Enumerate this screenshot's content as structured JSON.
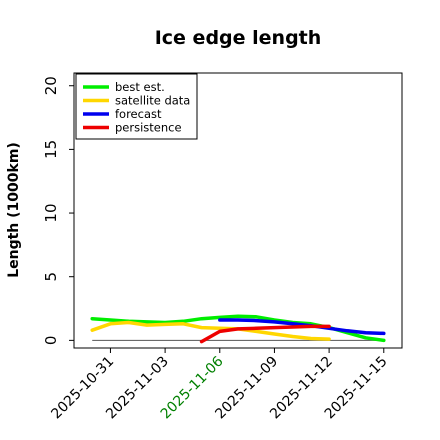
{
  "chart_data": {
    "type": "line",
    "title": "Ice edge length",
    "xlabel": "",
    "ylabel": "Length (1000km)",
    "ylim": [
      -0.6,
      21
    ],
    "yticks": [
      0,
      5,
      10,
      15,
      20
    ],
    "xlim": [
      "2025-10-29",
      "2025-11-16"
    ],
    "xticks": [
      {
        "date": "2025-10-31",
        "label": "2025-10-31",
        "color": "#000000"
      },
      {
        "date": "2025-11-03",
        "label": "2025-11-03",
        "color": "#000000"
      },
      {
        "date": "2025-11-06",
        "label": "2025-11-06",
        "color": "#008000"
      },
      {
        "date": "2025-11-09",
        "label": "2025-11-09",
        "color": "#000000"
      },
      {
        "date": "2025-11-12",
        "label": "2025-11-12",
        "color": "#000000"
      },
      {
        "date": "2025-11-15",
        "label": "2025-11-15",
        "color": "#000000"
      }
    ],
    "grid": false,
    "legend_position": "top-left",
    "reference_line": {
      "y": 0,
      "from": "2025-10-30",
      "to": "2025-11-15",
      "color": "#555555"
    },
    "series": [
      {
        "name": "best est.",
        "color": "#00ee00",
        "x": [
          "2025-10-30",
          "2025-10-31",
          "2025-11-01",
          "2025-11-02",
          "2025-11-03",
          "2025-11-04",
          "2025-11-05",
          "2025-11-06",
          "2025-11-07",
          "2025-11-08",
          "2025-11-09",
          "2025-11-10",
          "2025-11-11",
          "2025-11-12",
          "2025-11-13",
          "2025-11-14",
          "2025-11-15"
        ],
        "values": [
          1.7,
          1.6,
          1.5,
          1.45,
          1.4,
          1.5,
          1.7,
          1.8,
          1.9,
          1.85,
          1.6,
          1.4,
          1.3,
          1.0,
          0.6,
          0.2,
          0.0
        ]
      },
      {
        "name": "satellite data",
        "color": "#ffd700",
        "x": [
          "2025-10-30",
          "2025-10-31",
          "2025-11-01",
          "2025-11-02",
          "2025-11-03",
          "2025-11-04",
          "2025-11-05",
          "2025-11-06",
          "2025-11-07",
          "2025-11-08",
          "2025-11-09",
          "2025-11-10",
          "2025-11-11",
          "2025-11-12"
        ],
        "values": [
          0.8,
          1.3,
          1.4,
          1.2,
          1.25,
          1.3,
          1.0,
          0.95,
          0.9,
          0.7,
          0.5,
          0.3,
          0.15,
          0.1
        ]
      },
      {
        "name": "forecast",
        "color": "#0000ee",
        "x": [
          "2025-11-06",
          "2025-11-07",
          "2025-11-08",
          "2025-11-09",
          "2025-11-10",
          "2025-11-11",
          "2025-11-12",
          "2025-11-13",
          "2025-11-14",
          "2025-11-15"
        ],
        "values": [
          1.6,
          1.6,
          1.55,
          1.45,
          1.3,
          1.15,
          0.95,
          0.75,
          0.6,
          0.55
        ]
      },
      {
        "name": "persistence",
        "color": "#ee0000",
        "x": [
          "2025-11-05",
          "2025-11-06",
          "2025-11-07",
          "2025-11-08",
          "2025-11-09",
          "2025-11-10",
          "2025-11-11",
          "2025-11-12"
        ],
        "values": [
          -0.1,
          0.7,
          0.9,
          0.95,
          1.0,
          1.05,
          1.1,
          1.1
        ]
      }
    ]
  }
}
